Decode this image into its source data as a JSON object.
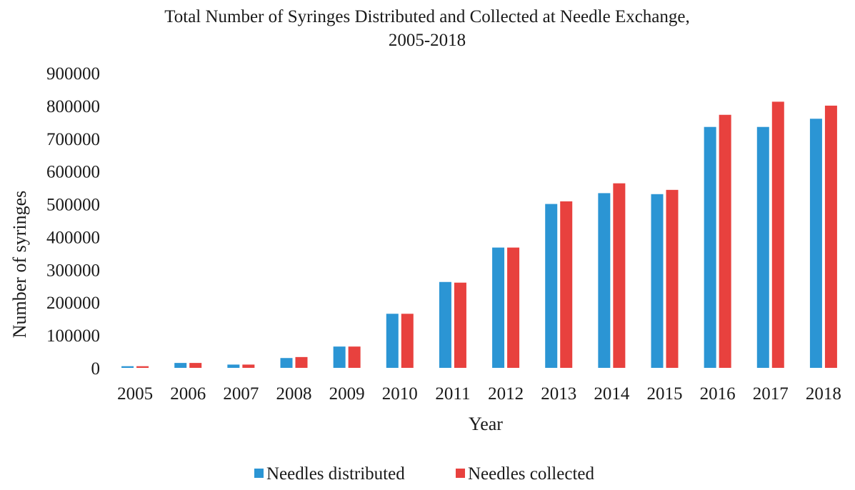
{
  "chart_data": {
    "type": "bar",
    "title": "Total Number of Syringes Distributed and Collected at Needle Exchange,",
    "subtitle": "2005-2018",
    "xlabel": "Year",
    "ylabel": "Number of syringes",
    "ylim": [
      0,
      900000
    ],
    "yticks": [
      "0",
      "100000",
      "200000",
      "300000",
      "400000",
      "500000",
      "600000",
      "700000",
      "800000",
      "900000"
    ],
    "grid": false,
    "legend_position": "bottom",
    "categories": [
      "2005",
      "2006",
      "2007",
      "2008",
      "2009",
      "2010",
      "2011",
      "2012",
      "2013",
      "2014",
      "2015",
      "2016",
      "2017",
      "2018"
    ],
    "series": [
      {
        "name": "Needles distributed",
        "color": "#2b95d4",
        "values": [
          5000,
          15000,
          10000,
          30000,
          65000,
          165000,
          262000,
          367000,
          500000,
          533000,
          530000,
          735000,
          735000,
          760000
        ]
      },
      {
        "name": "Needles collected",
        "color": "#e8413e",
        "values": [
          5000,
          15000,
          10000,
          33000,
          65000,
          165000,
          260000,
          367000,
          508000,
          563000,
          543000,
          772000,
          812000,
          800000
        ]
      }
    ]
  }
}
